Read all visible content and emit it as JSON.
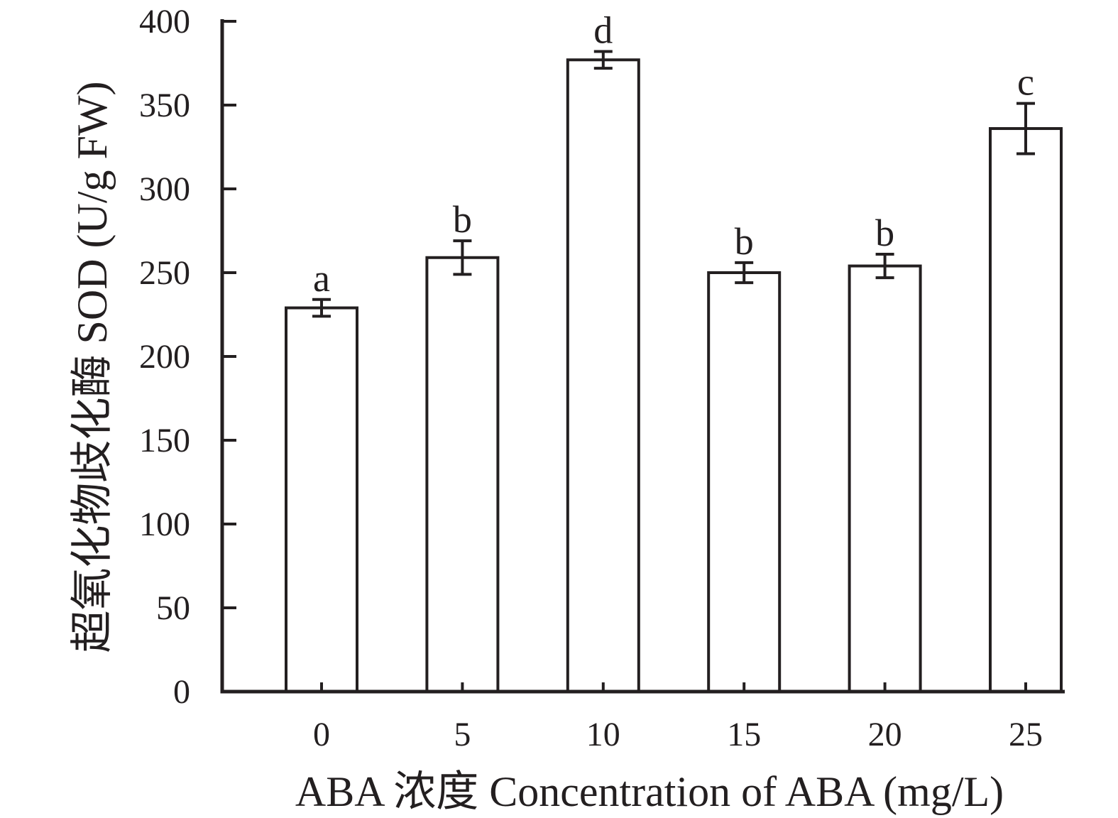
{
  "figure": {
    "background": "#ffffff",
    "ink_color": "#231f20"
  },
  "chart_data": {
    "type": "bar",
    "title": "",
    "xlabel": "ABA 浓度 Concentration of ABA (mg/L)",
    "ylabel": "超氧化物歧化酶 SOD (U/g FW)",
    "categories": [
      "0",
      "5",
      "10",
      "15",
      "20",
      "25"
    ],
    "values": [
      229,
      259,
      377,
      250,
      254,
      336
    ],
    "errors": [
      5,
      10,
      5,
      6,
      7,
      15
    ],
    "sig_letters": [
      "a",
      "b",
      "d",
      "b",
      "b",
      "c"
    ],
    "ylim": [
      0,
      400
    ],
    "ytick_step": 50,
    "yticks": [
      0,
      50,
      100,
      150,
      200,
      250,
      300,
      350,
      400
    ],
    "grid": false,
    "legend": "none",
    "bar_fill": "#ffffff"
  }
}
